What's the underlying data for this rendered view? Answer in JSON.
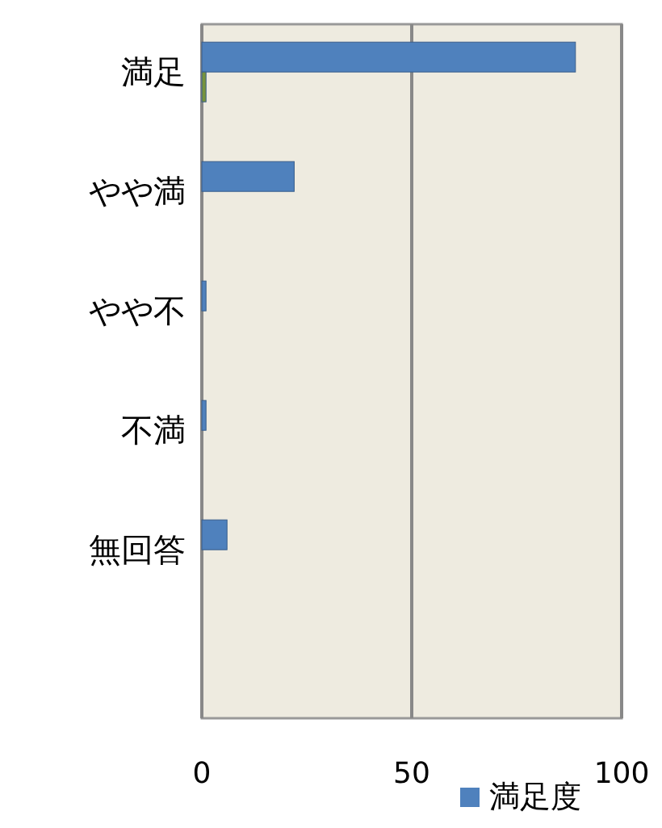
{
  "chart_data": {
    "type": "bar",
    "orientation": "horizontal",
    "categories": [
      "満足",
      "やや満",
      "やや不",
      "不満",
      "無回答"
    ],
    "series": [
      {
        "name": "満足度",
        "color": "#4f81bd",
        "values": [
          89,
          22,
          1,
          1,
          6
        ]
      },
      {
        "color": "#77933c",
        "values": [
          1,
          null,
          null,
          null,
          null
        ]
      }
    ],
    "xlim": [
      0,
      100
    ],
    "xticks": [
      0,
      50,
      100
    ],
    "grid": "x",
    "legend": "bottom right"
  }
}
